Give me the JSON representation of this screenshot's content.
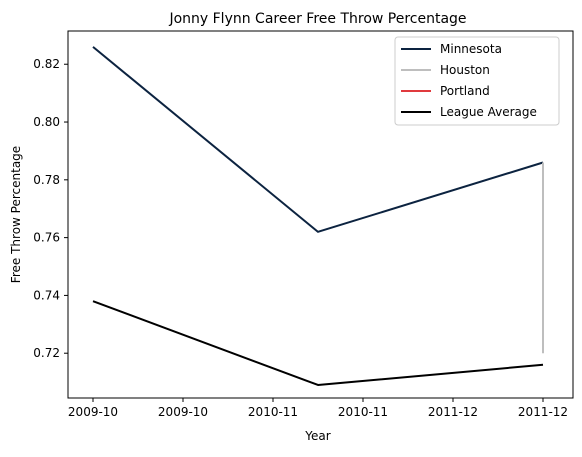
{
  "chart_data": {
    "type": "line",
    "title": "Jonny Flynn Career Free Throw Percentage",
    "xlabel": "Year",
    "ylabel": "Free Throw Percentage",
    "x_tick_labels": [
      "2009-10",
      "2009-10",
      "2010-11",
      "2010-11",
      "2011-12",
      "2011-12"
    ],
    "y_ticks": [
      0.72,
      0.74,
      0.76,
      0.78,
      0.8,
      0.82
    ],
    "y_tick_labels": [
      "0.72",
      "0.74",
      "0.76",
      "0.78",
      "0.80",
      "0.82"
    ],
    "ylim": [
      0.7045,
      0.8315
    ],
    "x_positions": [
      "2009-10",
      "2010-11",
      "2011-12"
    ],
    "grid": false,
    "legend_position": "top-right",
    "series": [
      {
        "name": "Minnesota",
        "color": "#0C2340",
        "x_index": [
          0,
          1,
          2
        ],
        "values": [
          0.826,
          0.762,
          0.786
        ]
      },
      {
        "name": "Houston",
        "color": "#BEBEBE",
        "x_index": [
          2,
          2
        ],
        "values": [
          0.786,
          0.72
        ]
      },
      {
        "name": "Portland",
        "color": "#E03A3E",
        "x_index": [],
        "values": []
      },
      {
        "name": "League Average",
        "color": "#000000",
        "x_index": [
          0,
          1,
          2
        ],
        "values": [
          0.738,
          0.709,
          0.716
        ]
      }
    ]
  }
}
